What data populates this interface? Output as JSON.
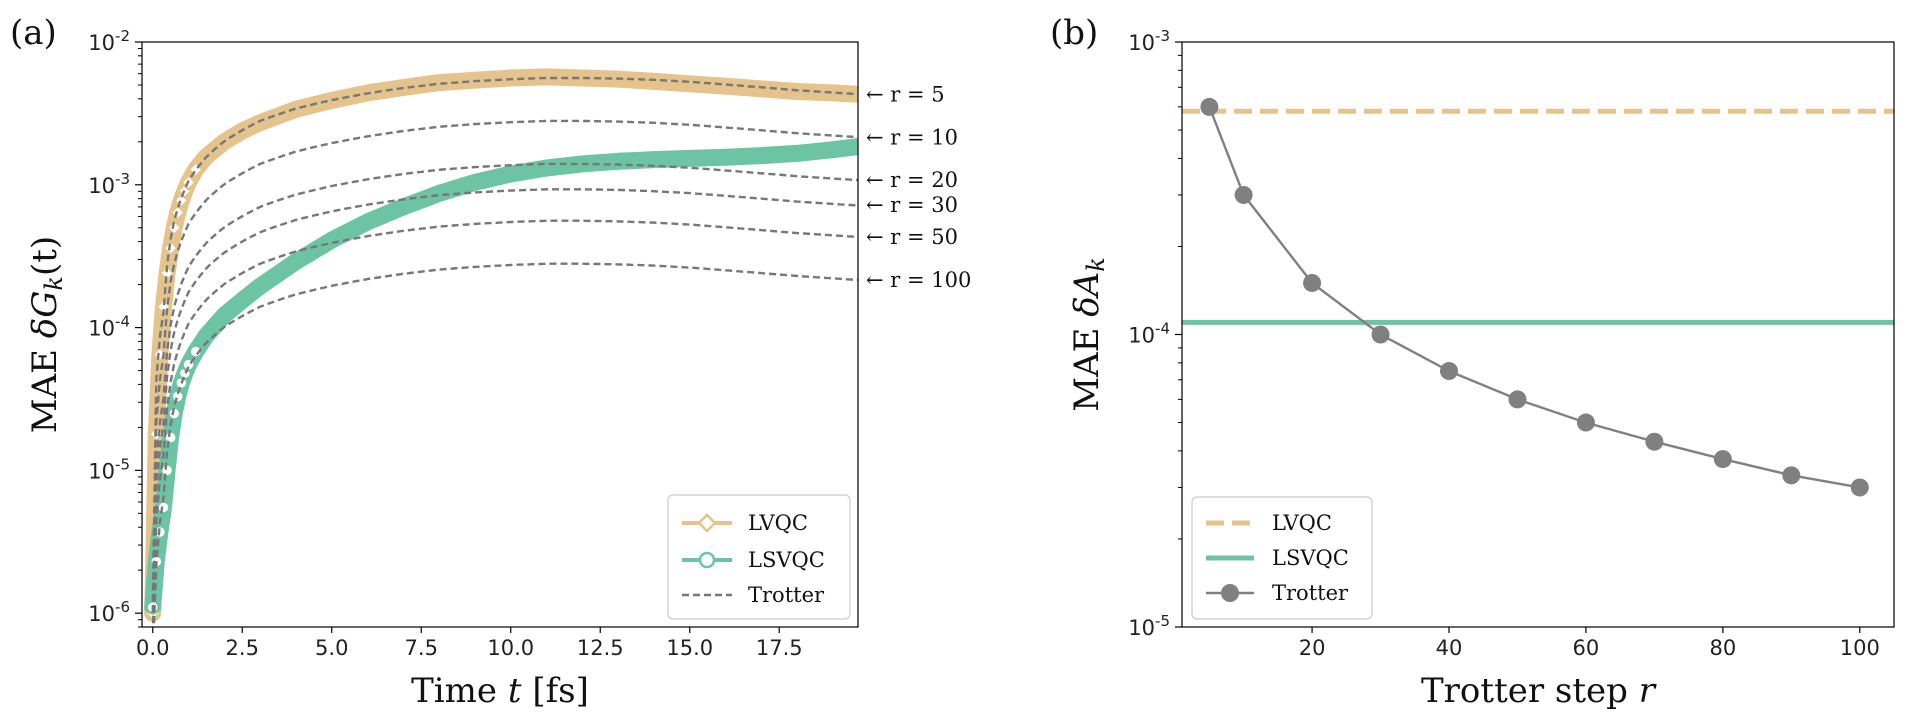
{
  "chart_data": [
    {
      "panel": "(a)",
      "type": "line",
      "xlabel_prefix": "Time ",
      "xlabel_var": "t",
      "xlabel_suffix": " [fs]",
      "ylabel_prefix": "MAE ",
      "ylabel_var": "δG",
      "ylabel_sub": "k",
      "ylabel_suffix": "(t)",
      "yscale": "log",
      "xlim": [
        -0.3,
        19.7
      ],
      "ylim": [
        8e-07,
        0.01
      ],
      "xticks": [
        0,
        2.5,
        5,
        7.5,
        10,
        12.5,
        15,
        17.5
      ],
      "xtick_labels": [
        "0.0",
        "2.5",
        "5.0",
        "7.5",
        "10.0",
        "12.5",
        "15.0",
        "17.5"
      ],
      "yticks": [
        -6,
        -5,
        -4,
        -3,
        -2
      ],
      "ytick_base": "10",
      "legend_position": "lower-right",
      "legend": [
        "LVQC",
        "LSVQC",
        "Trotter"
      ],
      "colors": {
        "LVQC": "#e5c38d",
        "LSVQC": "#6cc4a4",
        "Trotter": "#777777"
      },
      "series": [
        {
          "name": "LVQC",
          "x": [
            0.0,
            0.1,
            0.2,
            0.3,
            0.4,
            0.5,
            0.6,
            0.7,
            0.8,
            0.9,
            1.0,
            1.2,
            1.5,
            2.0,
            2.5,
            3.0,
            4.0,
            5.0,
            6.0,
            7.0,
            8.0,
            9.0,
            10.0,
            11.0,
            12.0,
            13.0,
            14.0,
            15.0,
            16.0,
            17.0,
            18.0,
            19.0,
            19.7
          ],
          "y": [
            1e-06,
            1.8e-05,
            6.5e-05,
            0.00014,
            0.00024,
            0.00036,
            0.0005,
            0.00064,
            0.00078,
            0.00091,
            0.00104,
            0.00128,
            0.00158,
            0.002,
            0.00238,
            0.00272,
            0.00338,
            0.0039,
            0.0044,
            0.0048,
            0.0052,
            0.0054,
            0.0056,
            0.0057,
            0.0056,
            0.0055,
            0.0053,
            0.0051,
            0.0049,
            0.0047,
            0.0045,
            0.0044,
            0.0043
          ]
        },
        {
          "name": "LSVQC",
          "x": [
            0.0,
            0.1,
            0.2,
            0.3,
            0.4,
            0.5,
            0.6,
            0.7,
            0.8,
            0.9,
            1.0,
            1.2,
            1.5,
            2.0,
            2.5,
            3.0,
            4.0,
            5.0,
            6.0,
            7.0,
            8.0,
            9.0,
            10.0,
            11.0,
            12.0,
            13.0,
            14.0,
            15.0,
            16.0,
            17.0,
            18.0,
            19.0,
            19.7
          ],
          "y": [
            1.1e-06,
            2.3e-06,
            3.7e-06,
            5.5e-06,
            1e-05,
            1.7e-05,
            2.5e-05,
            3.3e-05,
            4.1e-05,
            4.8e-05,
            5.5e-05,
            6.8e-05,
            8.8e-05,
            0.000122,
            0.000155,
            0.000195,
            0.00029,
            0.00041,
            0.00055,
            0.0007,
            0.00087,
            0.00104,
            0.00119,
            0.00131,
            0.0014,
            0.00146,
            0.0015,
            0.00153,
            0.00156,
            0.0016,
            0.00166,
            0.00176,
            0.00185
          ]
        }
      ],
      "trotter_curves": [
        {
          "r": 5,
          "label": "← r = 5",
          "end_value": 0.0043,
          "plateau": 0.0056
        },
        {
          "r": 10,
          "label": "← r = 10",
          "end_value": 0.00215,
          "plateau": 0.0028
        },
        {
          "r": 20,
          "label": "← r = 20",
          "end_value": 0.00108,
          "plateau": 0.0014
        },
        {
          "r": 30,
          "label": "← r = 30",
          "end_value": 0.00072,
          "plateau": 0.00093
        },
        {
          "r": 50,
          "label": "← r = 50",
          "end_value": 0.00043,
          "plateau": 0.00056
        },
        {
          "r": 100,
          "label": "← r = 100",
          "end_value": 0.000215,
          "plateau": 0.00028
        }
      ],
      "trotter_shape": {
        "x": [
          0.0,
          0.3,
          0.6,
          1.0,
          1.5,
          2.0,
          2.5,
          3.0,
          4.0,
          5.0,
          6.0,
          7.0,
          8.0,
          9.0,
          10.0,
          11.0,
          12.0,
          13.0,
          14.0,
          15.0,
          16.0,
          17.0,
          18.0,
          19.0,
          19.7
        ],
        "f": [
          0.00018,
          0.023,
          0.1,
          0.19,
          0.28,
          0.36,
          0.43,
          0.5,
          0.61,
          0.7,
          0.78,
          0.85,
          0.91,
          0.95,
          0.98,
          1.0,
          1.0,
          0.99,
          0.97,
          0.94,
          0.9,
          0.86,
          0.82,
          0.79,
          0.77
        ]
      }
    },
    {
      "panel": "(b)",
      "type": "line",
      "xlabel_prefix": "Trotter step ",
      "xlabel_var": "r",
      "ylabel_prefix": "MAE ",
      "ylabel_var": "δA",
      "ylabel_sub": "k",
      "yscale": "log",
      "xlim": [
        1,
        105
      ],
      "ylim": [
        1e-05,
        0.001
      ],
      "xticks": [
        20,
        40,
        60,
        80,
        100
      ],
      "xtick_labels": [
        "20",
        "40",
        "60",
        "80",
        "100"
      ],
      "yticks": [
        -5,
        -4,
        -3
      ],
      "ytick_base": "10",
      "legend_position": "lower-left",
      "legend": [
        "LVQC",
        "LSVQC",
        "Trotter"
      ],
      "colors": {
        "LVQC": "#e5c38d",
        "LSVQC": "#6cc4a4",
        "Trotter": "#808080"
      },
      "hlines": [
        {
          "name": "LVQC",
          "value": 0.00058,
          "style": "dashed"
        },
        {
          "name": "LSVQC",
          "value": 0.00011,
          "style": "solid"
        }
      ],
      "series": [
        {
          "name": "Trotter",
          "x": [
            5,
            10,
            20,
            30,
            40,
            50,
            60,
            70,
            80,
            90,
            100
          ],
          "y": [
            0.0006,
            0.0003,
            0.00015,
            0.0001,
            7.5e-05,
            6e-05,
            5e-05,
            4.3e-05,
            3.75e-05,
            3.3e-05,
            3e-05
          ]
        }
      ]
    }
  ]
}
